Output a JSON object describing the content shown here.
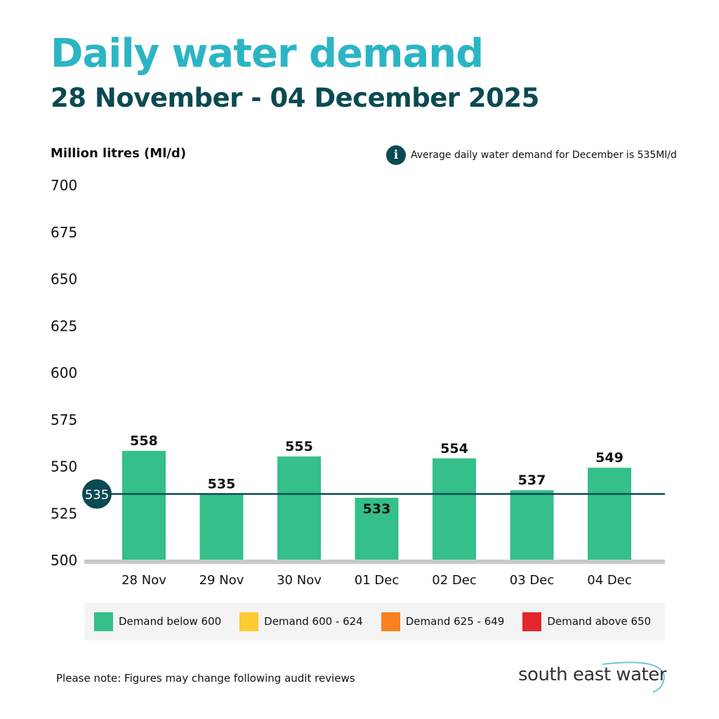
{
  "header": {
    "title": "Daily water demand",
    "subtitle": "28 November - 04 December 2025"
  },
  "note_top": {
    "icon": "info-icon",
    "icon_glyph": "i",
    "text": "Average daily water demand for December  is 535Ml/d"
  },
  "chart_data": {
    "type": "bar",
    "ylabel": "Million litres (Ml/d)",
    "ylim": [
      500,
      700
    ],
    "yticks": [
      500,
      525,
      550,
      575,
      600,
      625,
      650,
      675,
      700
    ],
    "categories": [
      "28 Nov",
      "29 Nov",
      "30 Nov",
      "01 Dec",
      "02 Dec",
      "03 Dec",
      "04 Dec"
    ],
    "values": [
      558,
      535,
      555,
      533,
      554,
      537,
      549
    ],
    "data_labels": [
      "558",
      "535",
      "555",
      "533",
      "554",
      "537",
      "549"
    ],
    "average_line": {
      "value": 535,
      "label": "535",
      "color": "#0b4a52"
    },
    "bar_color": "#35bf8a",
    "grid": false,
    "legend_position": "bottom",
    "legend": [
      {
        "label": "Demand below 600",
        "color": "#35bf8a"
      },
      {
        "label": "Demand 600 - 624",
        "color": "#fdca33"
      },
      {
        "label": "Demand 625 - 649",
        "color": "#f7811e"
      },
      {
        "label": "Demand above 650",
        "color": "#e5262a"
      }
    ]
  },
  "footer": {
    "note": "Please note: Figures may change following audit reviews",
    "logo": "south east water"
  }
}
